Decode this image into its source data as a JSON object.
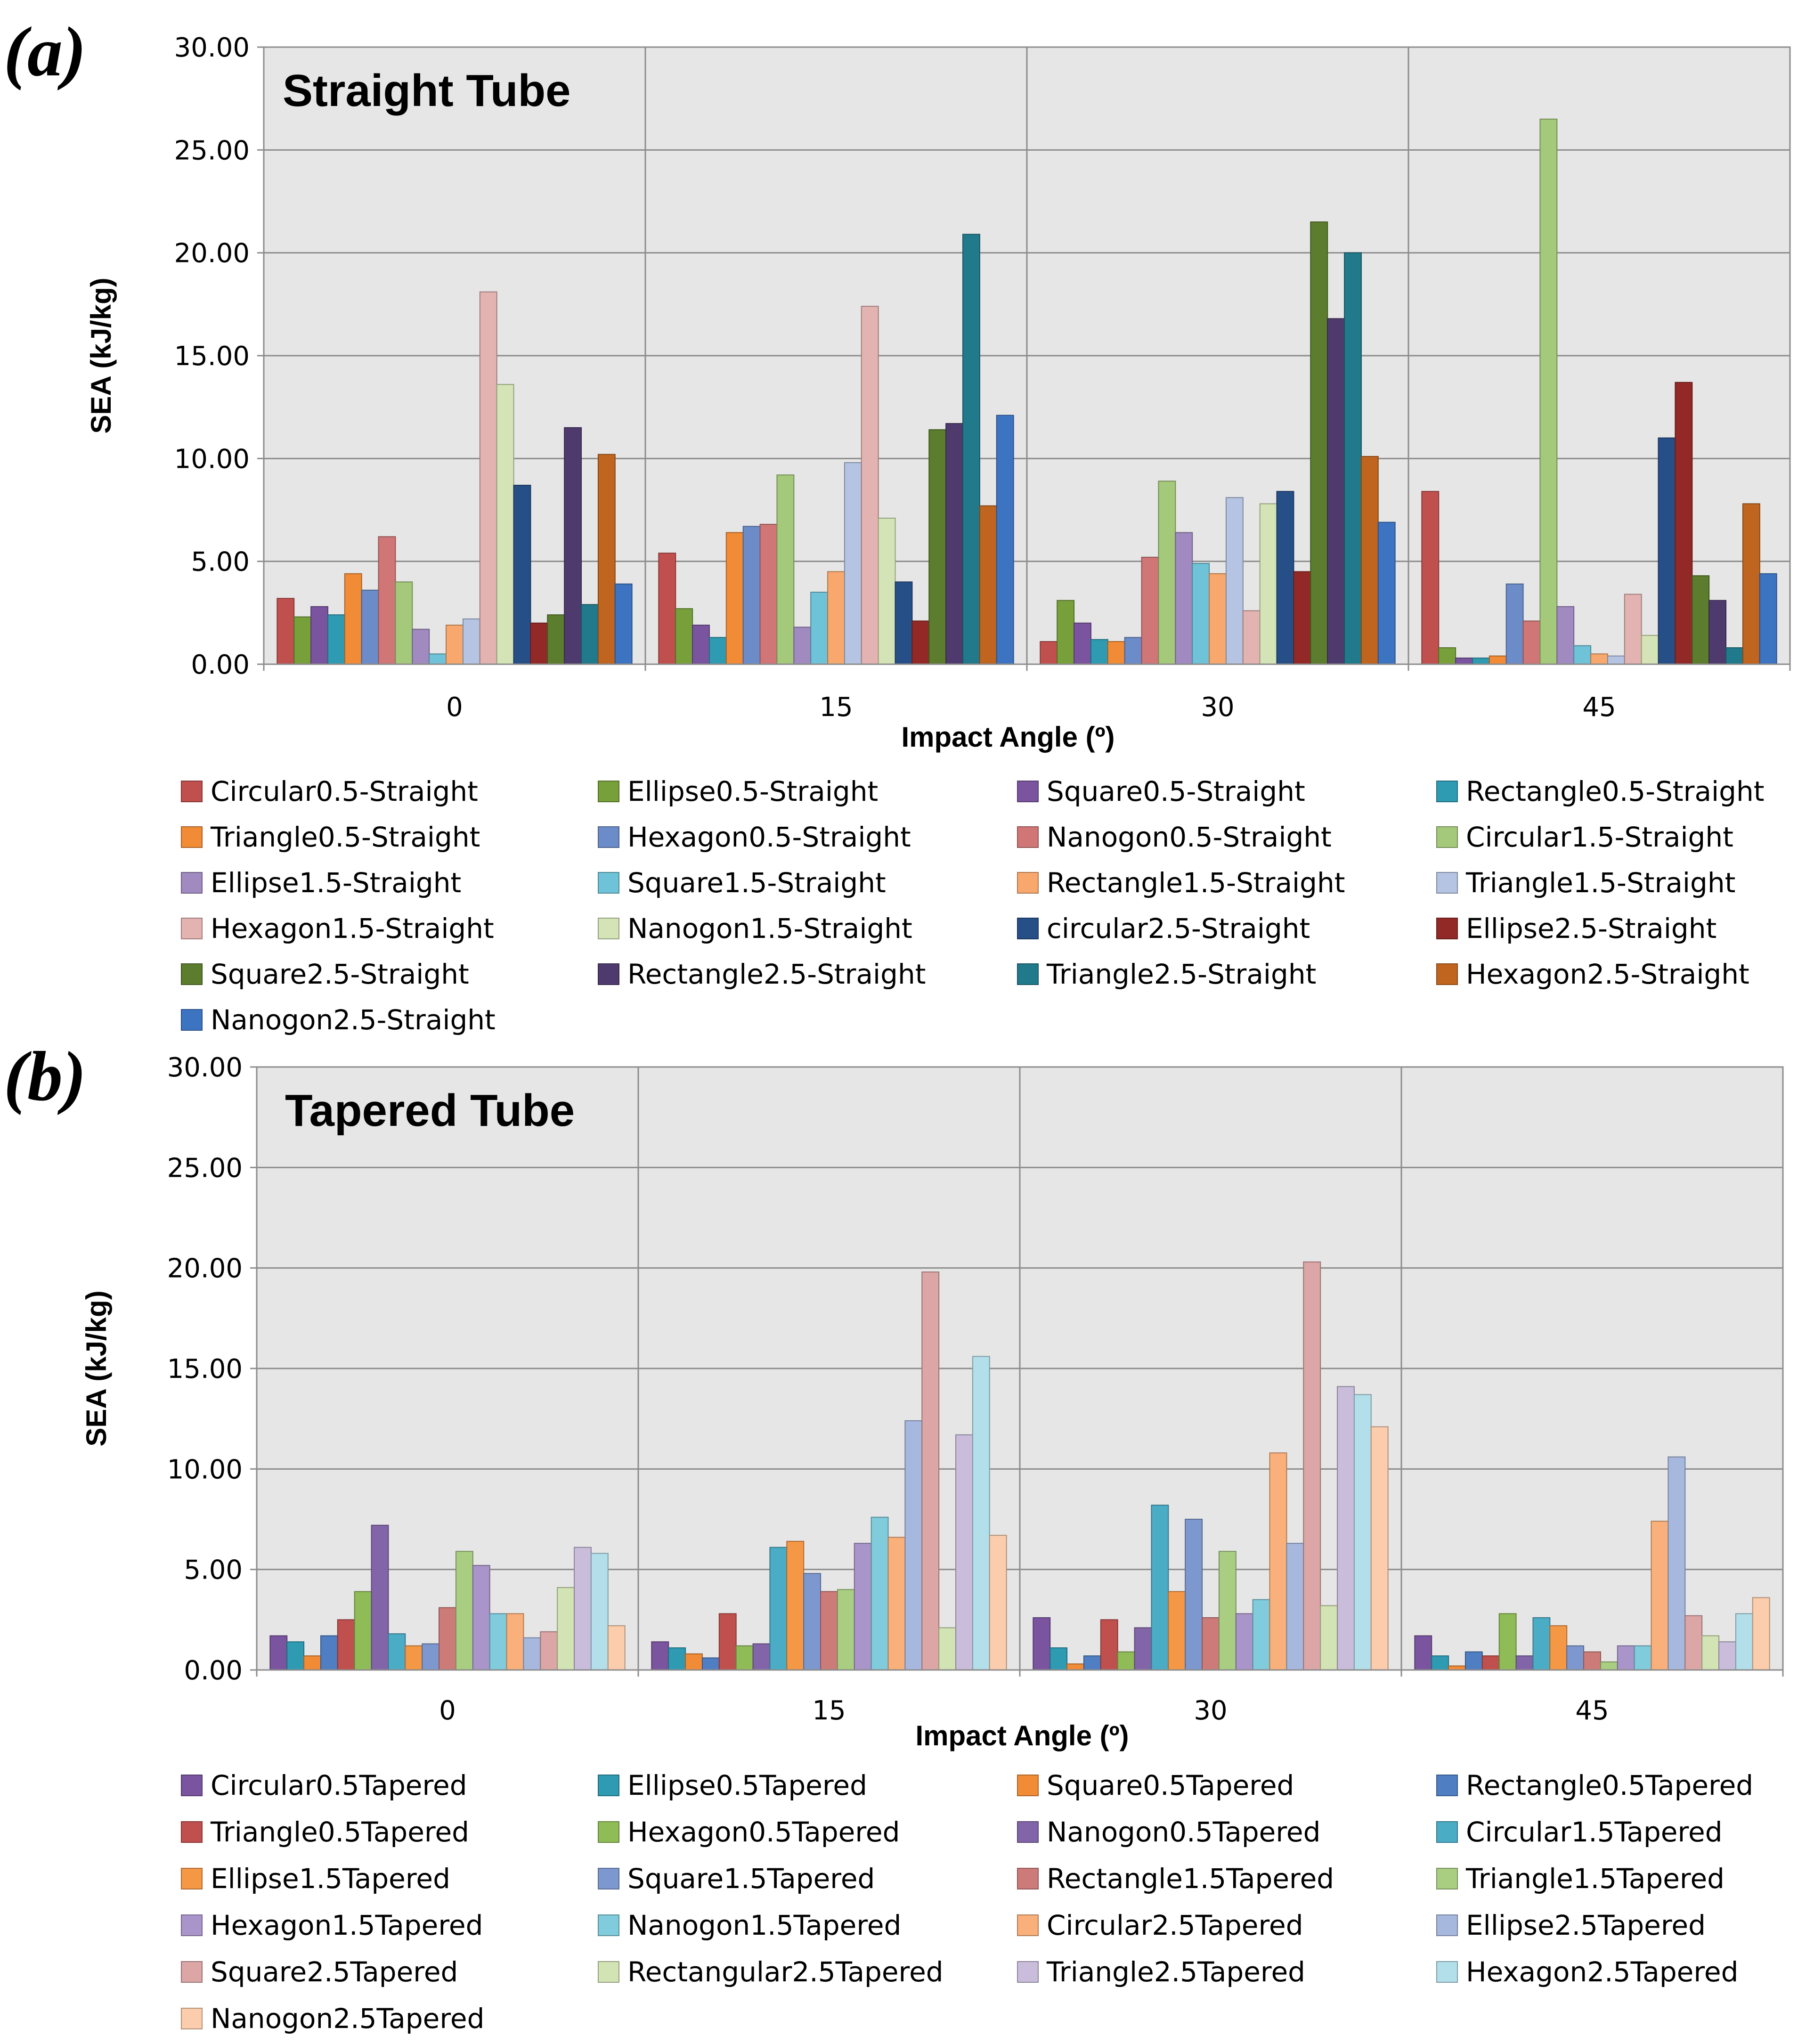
{
  "chart_data": [
    {
      "type": "bar",
      "panel_label": "(a)",
      "title": "Straight Tube",
      "xlabel": "Impact Angle (º)",
      "ylabel": "SEA (kJ/kg)",
      "ylim": [
        0,
        30
      ],
      "yticks": [
        "0.00",
        "5.00",
        "10.00",
        "15.00",
        "20.00",
        "25.00",
        "30.00"
      ],
      "categories": [
        "0",
        "15",
        "30",
        "45"
      ],
      "series": [
        {
          "name": "Circular0.5-Straight",
          "color": "#c0504d",
          "values": [
            3.2,
            5.4,
            1.1,
            8.4
          ]
        },
        {
          "name": "Ellipse0.5-Straight",
          "color": "#77a03b",
          "values": [
            2.3,
            2.7,
            3.1,
            0.8
          ]
        },
        {
          "name": "Square0.5-Straight",
          "color": "#7a549e",
          "values": [
            2.8,
            1.9,
            2.0,
            0.3
          ]
        },
        {
          "name": "Rectangle0.5-Straight",
          "color": "#2e9bb3",
          "values": [
            2.4,
            1.3,
            1.2,
            0.3
          ]
        },
        {
          "name": "Triangle0.5-Straight",
          "color": "#f18b36",
          "values": [
            4.4,
            6.4,
            1.1,
            0.4
          ]
        },
        {
          "name": "Hexagon0.5-Straight",
          "color": "#6b8cc9",
          "values": [
            3.6,
            6.7,
            1.3,
            3.9
          ]
        },
        {
          "name": "Nanogon0.5-Straight",
          "color": "#d07676",
          "values": [
            6.2,
            6.8,
            5.2,
            2.1
          ]
        },
        {
          "name": "Circular1.5-Straight",
          "color": "#a5c97a",
          "values": [
            4.0,
            9.2,
            8.9,
            26.5
          ]
        },
        {
          "name": "Ellipse1.5-Straight",
          "color": "#a08ac0",
          "values": [
            1.7,
            1.8,
            6.4,
            2.8
          ]
        },
        {
          "name": "Square1.5-Straight",
          "color": "#6fc3d8",
          "values": [
            0.5,
            3.5,
            4.9,
            0.9
          ]
        },
        {
          "name": "Rectangle1.5-Straight",
          "color": "#f8a86d",
          "values": [
            1.9,
            4.5,
            4.4,
            0.5
          ]
        },
        {
          "name": "Triangle1.5-Straight",
          "color": "#b4c4e2",
          "values": [
            2.2,
            9.8,
            8.1,
            0.4
          ]
        },
        {
          "name": "Hexagon1.5-Straight",
          "color": "#e3b3b1",
          "values": [
            18.1,
            17.4,
            2.6,
            3.4
          ]
        },
        {
          "name": "Nanogon1.5-Straight",
          "color": "#d4e4b6",
          "values": [
            13.6,
            7.1,
            7.8,
            1.4
          ]
        },
        {
          "name": "circular2.5-Straight",
          "color": "#264f87",
          "values": [
            8.7,
            4.0,
            8.4,
            11.0
          ]
        },
        {
          "name": "Ellipse2.5-Straight",
          "color": "#932926",
          "values": [
            2.0,
            2.1,
            4.5,
            13.7
          ]
        },
        {
          "name": "Square2.5-Straight",
          "color": "#5c7d2d",
          "values": [
            2.4,
            11.4,
            21.5,
            4.3
          ]
        },
        {
          "name": "Rectangle2.5-Straight",
          "color": "#4f3a6e",
          "values": [
            11.5,
            11.7,
            16.8,
            3.1
          ]
        },
        {
          "name": "Triangle2.5-Straight",
          "color": "#217a8b",
          "values": [
            2.9,
            20.9,
            20.0,
            0.8
          ]
        },
        {
          "name": "Hexagon2.5-Straight",
          "color": "#c0651f",
          "values": [
            10.2,
            7.7,
            10.1,
            7.8
          ]
        },
        {
          "name": "Nanogon2.5-Straight",
          "color": "#3d74c2",
          "values": [
            3.9,
            12.1,
            6.9,
            4.4
          ]
        }
      ]
    },
    {
      "type": "bar",
      "panel_label": "(b)",
      "title": "Tapered Tube",
      "xlabel": "Impact Angle (º)",
      "ylabel": "SEA (kJ/kg)",
      "ylim": [
        0,
        30
      ],
      "yticks": [
        "0.00",
        "5.00",
        "10.00",
        "15.00",
        "20.00",
        "25.00",
        "30.00"
      ],
      "categories": [
        "0",
        "15",
        "30",
        "45"
      ],
      "series": [
        {
          "name": "Circular0.5Tapered",
          "color": "#7a549e",
          "values": [
            1.7,
            1.4,
            2.6,
            1.7
          ]
        },
        {
          "name": "Ellipse0.5Tapered",
          "color": "#2e9bb3",
          "values": [
            1.4,
            1.1,
            1.1,
            0.7
          ]
        },
        {
          "name": "Square0.5Tapered",
          "color": "#f18b36",
          "values": [
            0.7,
            0.8,
            0.3,
            0.2
          ]
        },
        {
          "name": "Rectangle0.5Tapered",
          "color": "#4f7ec3",
          "values": [
            1.7,
            0.6,
            0.7,
            0.9
          ]
        },
        {
          "name": "Triangle0.5Tapered",
          "color": "#c0504d",
          "values": [
            2.5,
            2.8,
            2.5,
            0.7
          ]
        },
        {
          "name": "Hexagon0.5Tapered",
          "color": "#8fbc57",
          "values": [
            3.9,
            1.2,
            0.9,
            2.8
          ]
        },
        {
          "name": "Nanogon0.5Tapered",
          "color": "#8265a8",
          "values": [
            7.2,
            1.3,
            2.1,
            0.7
          ]
        },
        {
          "name": "Circular1.5Tapered",
          "color": "#4bacc6",
          "values": [
            1.8,
            6.1,
            8.2,
            2.6
          ]
        },
        {
          "name": "Ellipse1.5Tapered",
          "color": "#f59846",
          "values": [
            1.2,
            6.4,
            3.9,
            2.2
          ]
        },
        {
          "name": "Square1.5Tapered",
          "color": "#7d98cf",
          "values": [
            1.3,
            4.8,
            7.5,
            1.2
          ]
        },
        {
          "name": "Rectangle1.5Tapered",
          "color": "#cd7b79",
          "values": [
            3.1,
            3.9,
            2.6,
            0.9
          ]
        },
        {
          "name": "Triangle1.5Tapered",
          "color": "#a9ce82",
          "values": [
            5.9,
            4.0,
            5.9,
            0.4
          ]
        },
        {
          "name": "Hexagon1.5Tapered",
          "color": "#a995c9",
          "values": [
            5.2,
            6.3,
            2.8,
            1.2
          ]
        },
        {
          "name": "Nanogon1.5Tapered",
          "color": "#80cbdc",
          "values": [
            2.8,
            7.6,
            3.5,
            1.2
          ]
        },
        {
          "name": "Circular2.5Tapered",
          "color": "#f9b07b",
          "values": [
            2.8,
            6.6,
            10.8,
            7.4
          ]
        },
        {
          "name": "Ellipse2.5Tapered",
          "color": "#a7b8df",
          "values": [
            1.6,
            12.4,
            6.3,
            10.6
          ]
        },
        {
          "name": "Square2.5Tapered",
          "color": "#dba6a5",
          "values": [
            1.9,
            19.8,
            20.3,
            2.7
          ]
        },
        {
          "name": "Rectangular2.5Tapered",
          "color": "#d2e3b4",
          "values": [
            4.1,
            2.1,
            3.2,
            1.7
          ]
        },
        {
          "name": "Triangle2.5Tapered",
          "color": "#c9bddb",
          "values": [
            6.1,
            11.7,
            14.1,
            1.4
          ]
        },
        {
          "name": "Hexagon2.5Tapered",
          "color": "#b3dfea",
          "values": [
            5.8,
            15.6,
            13.7,
            2.8
          ]
        },
        {
          "name": "Nanogon2.5Tapered",
          "color": "#fbcdac",
          "values": [
            2.2,
            6.7,
            12.1,
            3.6
          ]
        }
      ]
    }
  ]
}
